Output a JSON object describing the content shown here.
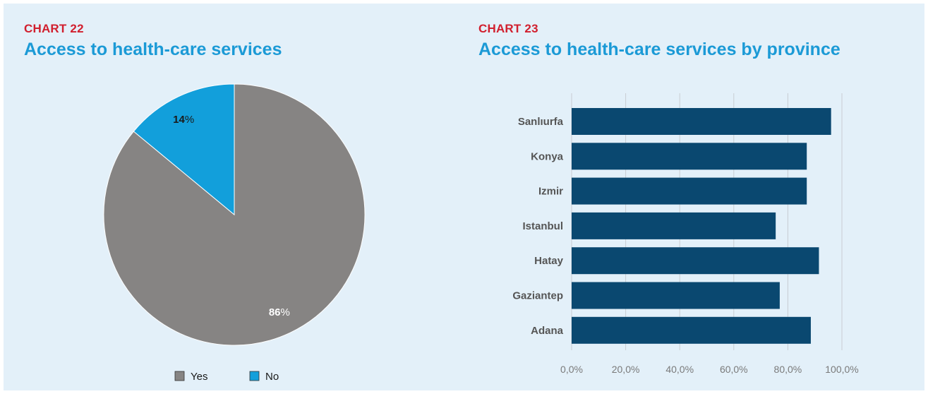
{
  "charts": [
    {
      "label": "CHART 22",
      "title": "Access to health-care services"
    },
    {
      "label": "CHART 23",
      "title": "Access to health-care services by province"
    }
  ],
  "chart_data": [
    {
      "type": "pie",
      "title": "Access to health-care services",
      "slices": [
        {
          "label": "Yes",
          "value": 86,
          "display_number": "86",
          "display_unit": "%",
          "color": "#868483"
        },
        {
          "label": "No",
          "value": 14,
          "display_number": "14",
          "display_unit": "%",
          "color": "#129fdb"
        }
      ],
      "legend_position": "bottom"
    },
    {
      "type": "bar",
      "orientation": "horizontal",
      "title": "Access to health-care services by province",
      "categories": [
        "Sanlıurfa",
        "Konya",
        "Izmir",
        "Istanbul",
        "Hatay",
        "Gaziantep",
        "Adana"
      ],
      "values": [
        96.0,
        87.0,
        87.0,
        75.5,
        91.5,
        77.0,
        88.5
      ],
      "xlim": [
        0,
        100
      ],
      "x_ticks": [
        "0,0%",
        "20,0%",
        "40,0%",
        "60,0%",
        "80,0%",
        "100,0%"
      ],
      "bar_color": "#0a4870",
      "grid": true
    }
  ]
}
